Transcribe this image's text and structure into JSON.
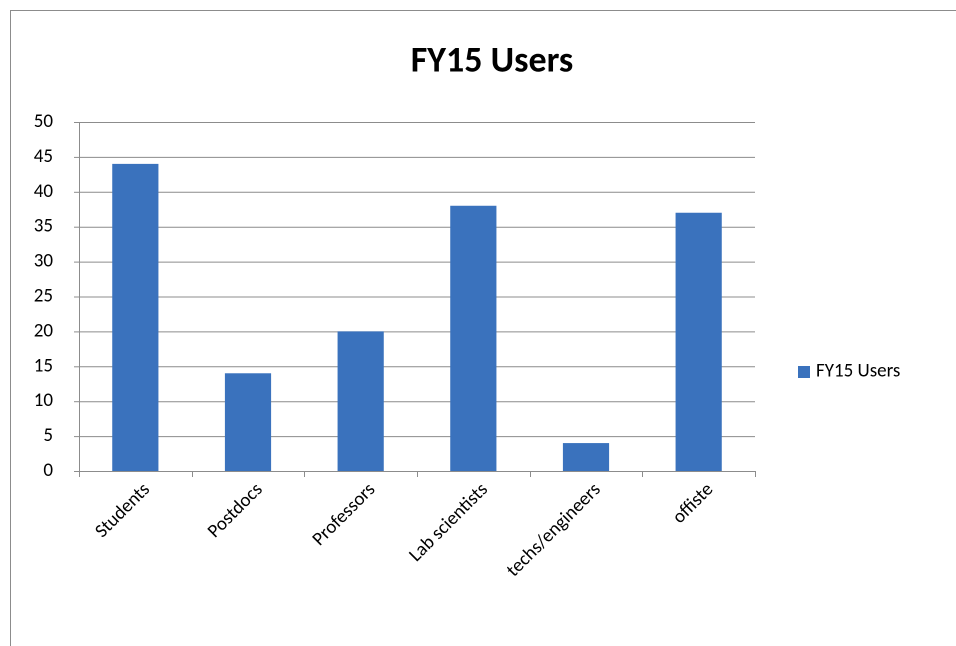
{
  "chart_data": {
    "type": "bar",
    "title": "FY15 Users",
    "categories": [
      "Students",
      "Postdocs",
      "Professors",
      "Lab scientists",
      "techs/engineers",
      "offiste"
    ],
    "series": [
      {
        "name": "FY15 Users",
        "color": "#3a72bd",
        "values": [
          44,
          14,
          20,
          38,
          4,
          37
        ]
      }
    ],
    "ylim": [
      0,
      50
    ],
    "yticks": [
      0,
      5,
      10,
      15,
      20,
      25,
      30,
      35,
      40,
      45,
      50
    ],
    "grid": true,
    "legend": "right"
  }
}
